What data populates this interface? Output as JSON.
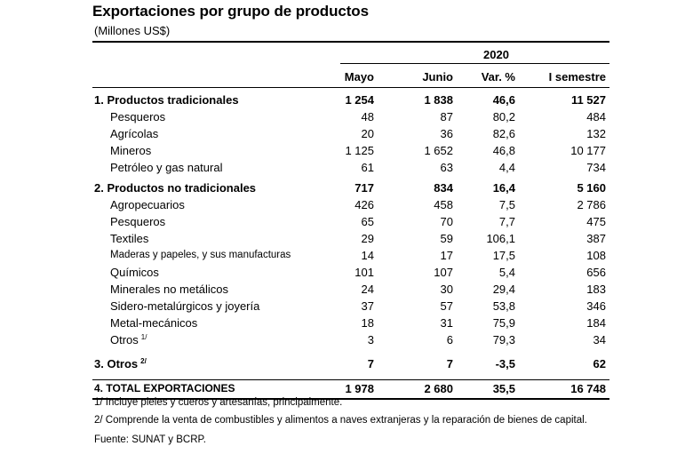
{
  "title": "Exportaciones por grupo de productos",
  "subtitle": "(Millones US$)",
  "year": "2020",
  "columns": [
    "Mayo",
    "Junio",
    "Var. %",
    "I semestre"
  ],
  "rows": [
    {
      "label": "1.  Productos tradicionales",
      "values": [
        "1 254",
        "1 838",
        "46,6",
        "11 527"
      ]
    },
    {
      "label": "Pesqueros",
      "values": [
        "48",
        "87",
        "80,2",
        "484"
      ]
    },
    {
      "label": "Agrícolas",
      "values": [
        "20",
        "36",
        "82,6",
        "132"
      ]
    },
    {
      "label": "Mineros",
      "values": [
        "1 125",
        "1 652",
        "46,8",
        "10 177"
      ]
    },
    {
      "label": "Petróleo  y  gas natural",
      "values": [
        "61",
        "63",
        "4,4",
        "734"
      ]
    },
    {
      "label": "2.  Productos no tradicionales",
      "values": [
        "717",
        "834",
        "16,4",
        "5 160"
      ]
    },
    {
      "label": "Agropecuarios",
      "values": [
        "426",
        "458",
        "7,5",
        "2 786"
      ]
    },
    {
      "label": "Pesqueros",
      "values": [
        "65",
        "70",
        "7,7",
        "475"
      ]
    },
    {
      "label": "Textiles",
      "values": [
        "29",
        "59",
        "106,1",
        "387"
      ]
    },
    {
      "label": "Maderas y papeles, y sus manufacturas",
      "values": [
        "14",
        "17",
        "17,5",
        "108"
      ]
    },
    {
      "label": "Químicos",
      "values": [
        "101",
        "107",
        "5,4",
        "656"
      ]
    },
    {
      "label": "Minerales no metálicos",
      "values": [
        "24",
        "30",
        "29,4",
        "183"
      ]
    },
    {
      "label": "Sidero-metalúrgicos y joyería",
      "values": [
        "37",
        "57",
        "53,8",
        "346"
      ]
    },
    {
      "label": "Metal-mecánicos",
      "values": [
        "18",
        "31",
        "75,9",
        "184"
      ]
    },
    {
      "label": "Otros",
      "sup": "1/",
      "values": [
        "3",
        "6",
        "79,3",
        "34"
      ]
    },
    {
      "label": "3.  Otros",
      "sup": "2/",
      "values": [
        "7",
        "7",
        "-3,5",
        "62"
      ]
    },
    {
      "label": "4.  TOTAL EXPORTACIONES",
      "values": [
        "1 978",
        "2 680",
        "35,5",
        "16 748"
      ]
    }
  ],
  "notes": [
    "1/  Incluye pieles y cueros y artesanías, principalmente.",
    "2/  Comprende la venta de combustibles y alimentos a naves extranjeras y la reparación de bienes de capital.",
    "Fuente: SUNAT y BCRP."
  ]
}
